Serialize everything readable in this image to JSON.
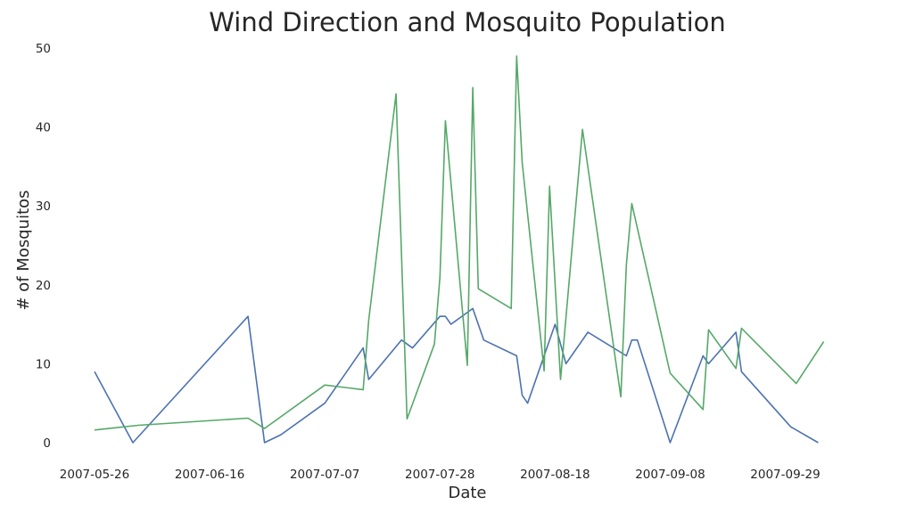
{
  "chart_data": {
    "type": "line",
    "title": "Wind Direction and Mosquito Population",
    "xlabel": "Date",
    "ylabel": "# of Mosquitos",
    "xlim": [
      "2007-05-26",
      "2007-10-09"
    ],
    "ylim": [
      0,
      50
    ],
    "x_ticks": [
      "2007-05-26",
      "2007-06-16",
      "2007-07-07",
      "2007-07-28",
      "2007-08-18",
      "2007-09-08",
      "2007-09-29"
    ],
    "y_ticks": [
      0,
      10,
      20,
      30,
      40,
      50
    ],
    "grid": false,
    "legend": "none",
    "series": [
      {
        "color": "#4c72b0",
        "points": [
          [
            "2007-05-26",
            9
          ],
          [
            "2007-06-02",
            0
          ],
          [
            "2007-06-23",
            16
          ],
          [
            "2007-06-26",
            0
          ],
          [
            "2007-06-29",
            1
          ],
          [
            "2007-07-07",
            5
          ],
          [
            "2007-07-14",
            12
          ],
          [
            "2007-07-15",
            8
          ],
          [
            "2007-07-21",
            13
          ],
          [
            "2007-07-23",
            12
          ],
          [
            "2007-07-28",
            16
          ],
          [
            "2007-07-29",
            16
          ],
          [
            "2007-07-30",
            15
          ],
          [
            "2007-08-03",
            17
          ],
          [
            "2007-08-05",
            13
          ],
          [
            "2007-08-11",
            11
          ],
          [
            "2007-08-12",
            6
          ],
          [
            "2007-08-13",
            5
          ],
          [
            "2007-08-18",
            15
          ],
          [
            "2007-08-20",
            10
          ],
          [
            "2007-08-24",
            14
          ],
          [
            "2007-08-31",
            11
          ],
          [
            "2007-09-01",
            13
          ],
          [
            "2007-09-02",
            13
          ],
          [
            "2007-09-08",
            0
          ],
          [
            "2007-09-14",
            11
          ],
          [
            "2007-09-15",
            10
          ],
          [
            "2007-09-20",
            14
          ],
          [
            "2007-09-21",
            9
          ],
          [
            "2007-09-30",
            2
          ],
          [
            "2007-10-05",
            0
          ]
        ]
      },
      {
        "color": "#55a868",
        "points": [
          [
            "2007-05-26",
            1.6
          ],
          [
            "2007-06-03",
            2.2
          ],
          [
            "2007-06-23",
            3.1
          ],
          [
            "2007-06-26",
            1.8
          ],
          [
            "2007-07-07",
            7.3
          ],
          [
            "2007-07-14",
            6.7
          ],
          [
            "2007-07-15",
            15.5
          ],
          [
            "2007-07-20",
            44.2
          ],
          [
            "2007-07-22",
            3
          ],
          [
            "2007-07-27",
            12.5
          ],
          [
            "2007-07-28",
            21
          ],
          [
            "2007-07-29",
            40.8
          ],
          [
            "2007-08-02",
            9.8
          ],
          [
            "2007-08-03",
            45
          ],
          [
            "2007-08-04",
            19.5
          ],
          [
            "2007-08-10",
            17
          ],
          [
            "2007-08-11",
            49
          ],
          [
            "2007-08-12",
            35.5
          ],
          [
            "2007-08-16",
            9.1
          ],
          [
            "2007-08-17",
            32.5
          ],
          [
            "2007-08-19",
            8
          ],
          [
            "2007-08-23",
            39.7
          ],
          [
            "2007-08-30",
            5.8
          ],
          [
            "2007-08-31",
            22.5
          ],
          [
            "2007-09-01",
            30.3
          ],
          [
            "2007-09-08",
            8.8
          ],
          [
            "2007-09-14",
            4.2
          ],
          [
            "2007-09-15",
            14.3
          ],
          [
            "2007-09-20",
            9.4
          ],
          [
            "2007-09-21",
            14.5
          ],
          [
            "2007-10-01",
            7.5
          ],
          [
            "2007-10-06",
            12.8
          ]
        ]
      }
    ]
  }
}
